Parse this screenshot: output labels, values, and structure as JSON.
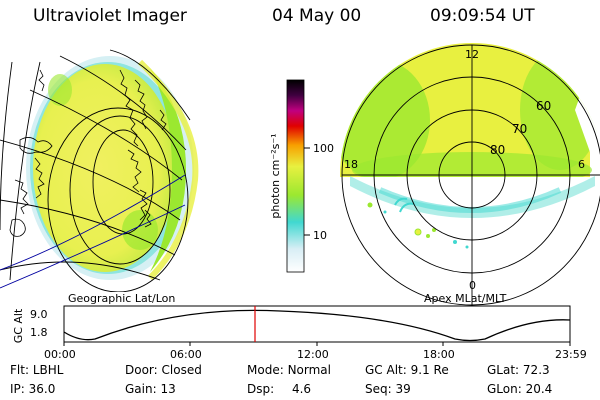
{
  "header": {
    "instrument": "Ultraviolet Imager",
    "date": "04 May 00",
    "time": "09:09:54 UT"
  },
  "colorbar": {
    "unit_label": "photon cm⁻²s⁻¹",
    "ticks": [
      {
        "label": "100",
        "value": 100
      },
      {
        "label": "10",
        "value": 10
      }
    ],
    "colors": [
      "#ffffff",
      "#d8eef5",
      "#40d8d0",
      "#9be830",
      "#e8f040",
      "#f8a000",
      "#e00000",
      "#c00080",
      "#400040",
      "#000000"
    ]
  },
  "left_panel": {
    "label": "Geographic Lat/Lon"
  },
  "right_panel": {
    "label": "Apex MLat/MLT",
    "mlt_labels": [
      {
        "label": "12",
        "position": "top"
      },
      {
        "label": "18",
        "position": "left"
      },
      {
        "label": "6",
        "position": "right"
      },
      {
        "label": "0",
        "position": "bottom"
      }
    ],
    "lat_labels": [
      "60",
      "70",
      "80"
    ]
  },
  "timeline": {
    "axis_label": "GC Alt",
    "y_ticks": [
      "9.0",
      "1.8"
    ],
    "x_ticks": [
      "00:00",
      "06:00",
      "12:00",
      "18:00",
      "23:59"
    ],
    "current_time": "09:09:54",
    "marker_color": "#e00000"
  },
  "status": {
    "row1": [
      {
        "key": "Flt:",
        "value": "LBHL"
      },
      {
        "key": "Door:",
        "value": "Closed"
      },
      {
        "key": "Mode:",
        "value": "Normal"
      },
      {
        "key": "GC Alt:",
        "value": "9.1 Re"
      },
      {
        "key": "GLat:",
        "value": "72.3"
      }
    ],
    "row2": [
      {
        "key": "IP:",
        "value": "36.0"
      },
      {
        "key": "Gain:",
        "value": "13"
      },
      {
        "key": "Dsp:",
        "value": "4.6"
      },
      {
        "key": "Seq:",
        "value": "39"
      },
      {
        "key": "GLon:",
        "value": "20.4"
      }
    ]
  }
}
